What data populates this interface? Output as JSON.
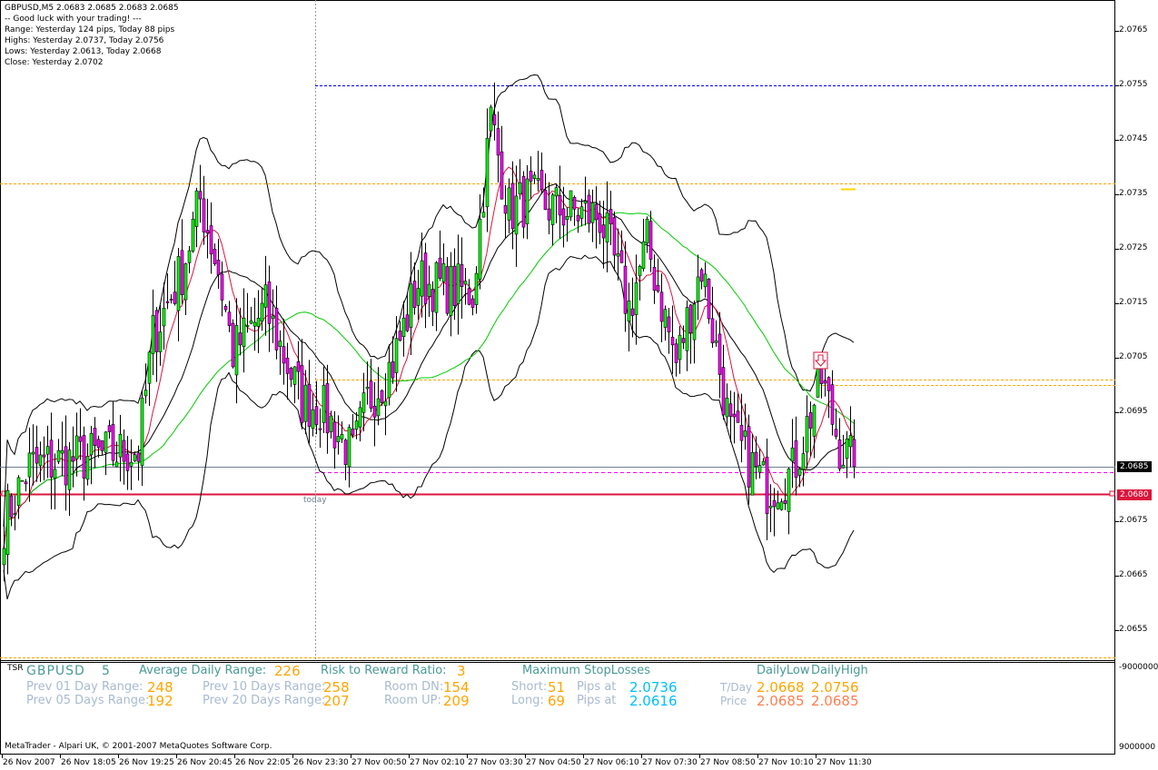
{
  "header": {
    "symbol_line": "GBPUSD,M5  2.0683 2.0685 2.0683 2.0685",
    "lines": [
      "-- Good luck with your trading! ---",
      "Range: Yesterday 124 pips, Today 88 pips",
      "Highs: Yesterday 2.0737, Today 2.0756",
      "Lows:  Yesterday 2.0613, Today 2.0668",
      "Close: Yesterday 2.0702"
    ]
  },
  "price_axis": {
    "ticks": [
      "2.0765",
      "2.0755",
      "2.0745",
      "2.0735",
      "2.0725",
      "2.0715",
      "2.0705",
      "2.0695",
      "2.0675",
      "2.0665",
      "2.0655"
    ],
    "current_bid": "2.0685",
    "alert_price": "2.0680",
    "bid_label_color": "#000000",
    "alert_label_color": "#dc143c"
  },
  "time_axis": [
    "26 Nov 2007",
    "26 Nov 18:05",
    "26 Nov 19:25",
    "26 Nov 20:45",
    "26 Nov 22:05",
    "26 Nov 23:30",
    "27 Nov 00:50",
    "27 Nov 02:10",
    "27 Nov 03:30",
    "27 Nov 04:50",
    "27 Nov 06:10",
    "27 Nov 07:30",
    "27 Nov 08:50",
    "27 Nov 10:10",
    "27 Nov 11:30"
  ],
  "chart": {
    "today_label": "today",
    "levels": [
      {
        "price": 2.0755,
        "color": "#0000ff",
        "style": "dotted",
        "from": "today"
      },
      {
        "price": 2.0737,
        "color": "#ffa500",
        "style": "dotted",
        "from": "start"
      },
      {
        "price": 2.0701,
        "color": "#ffa500",
        "style": "dotted",
        "from": "today"
      },
      {
        "price": 2.07,
        "color": "#ffa500",
        "style": "dotted",
        "from": "signal"
      },
      {
        "price": 2.0684,
        "color": "#ff00ff",
        "style": "dashed",
        "from": "today"
      },
      {
        "price": 2.0685,
        "color": "#708090",
        "style": "solid",
        "from": "start"
      },
      {
        "price": 2.068,
        "color": "#dc143c",
        "style": "solid",
        "from": "start"
      },
      {
        "price": 2.065,
        "color": "#ffa500",
        "style": "dotted",
        "from": "start"
      }
    ],
    "colors": {
      "bull": "#00ff00",
      "bear": "#ff00ff",
      "fast_ma": "#dc143c",
      "slow_ma": "#00cc00",
      "bands": "#000000"
    },
    "signal_icon": "down-arrow-icon",
    "approx_close_path": [
      [
        "26 16:45",
        2.0675
      ],
      [
        "26 17:20",
        2.0685
      ],
      [
        "26 18:50",
        2.0687
      ],
      [
        "26 19:50",
        2.0688
      ],
      [
        "26 20:10",
        2.0709
      ],
      [
        "26 20:50",
        2.0721
      ],
      [
        "26 21:15",
        2.0734
      ],
      [
        "26 21:40",
        2.0721
      ],
      [
        "26 22:00",
        2.0706
      ],
      [
        "26 22:45",
        2.0714
      ],
      [
        "26 23:35",
        2.0697
      ],
      [
        "27 00:00",
        2.0696
      ],
      [
        "27 00:45",
        2.0687
      ],
      [
        "27 01:05",
        2.0697
      ],
      [
        "27 01:40",
        2.0704
      ],
      [
        "27 02:15",
        2.0719
      ],
      [
        "27 03:30",
        2.0717
      ],
      [
        "27 03:55",
        2.0749
      ],
      [
        "27 04:20",
        2.0732
      ],
      [
        "27 04:45",
        2.0734
      ],
      [
        "27 05:35",
        2.0732
      ],
      [
        "27 06:25",
        2.0731
      ],
      [
        "27 07:05",
        2.0714
      ],
      [
        "27 07:30",
        2.0726
      ],
      [
        "27 08:10",
        2.0704
      ],
      [
        "27 08:45",
        2.0722
      ],
      [
        "27 09:25",
        2.0691
      ],
      [
        "27 10:15",
        2.0681
      ],
      [
        "27 10:50",
        2.0684
      ],
      [
        "27 11:30",
        2.0701
      ],
      [
        "27 11:55",
        2.0689
      ],
      [
        "27 12:15",
        2.0685
      ]
    ]
  },
  "panel": {
    "tag": "TSR",
    "symbol": "GBPUSD",
    "period": "5",
    "adr_label": "Average Daily Range:",
    "adr_value": "226",
    "rr_label": "Risk to Reward Ratio:",
    "rr_value": "3",
    "prev01_label": "Prev 01 Day Range:",
    "prev01_value": "248",
    "prev05_label": "Prev 05 Days Range:",
    "prev05_value": "192",
    "prev10_label": "Prev 10 Days Range:",
    "prev10_value": "258",
    "prev20_label": "Prev 20 Days Range:",
    "prev20_value": "207",
    "room_dn_label": "Room DN:",
    "room_dn_value": "154",
    "room_up_label": "Room UP:",
    "room_up_value": "209",
    "msl_label": "Maximum StopLosses",
    "short_label": "Short:",
    "short_value": "51",
    "short_pips_label": "Pips at",
    "short_price": "2.0736",
    "long_label": "Long:",
    "long_value": "69",
    "long_pips_label": "Pips at",
    "long_price": "2.0616",
    "daily_low_label": "DailyLow",
    "daily_high_label": "DailyHigh",
    "tday_label": "T/Day",
    "tday_low": "2.0668",
    "tday_high": "2.0756",
    "price_label": "Price",
    "price_low": "2.0685",
    "price_high": "2.0685",
    "axis_top": "-9000000",
    "axis_bottom": "9000000"
  },
  "footer": {
    "copyright": "MetaTrader - Alpari UK, © 2001-2007 MetaQuotes Software Corp."
  }
}
